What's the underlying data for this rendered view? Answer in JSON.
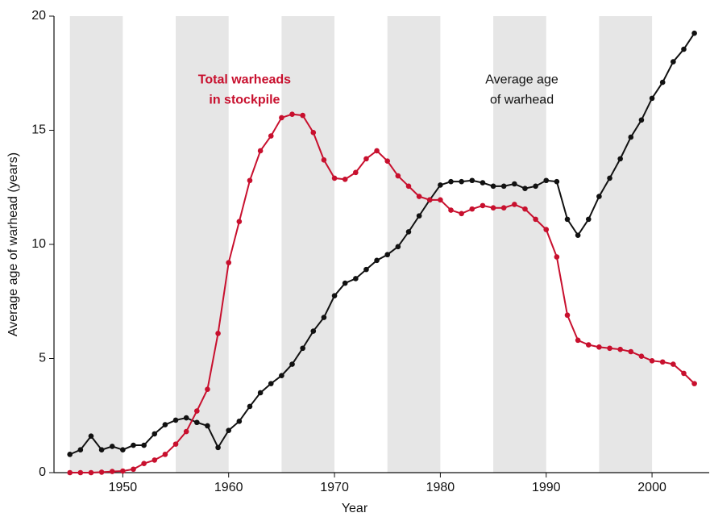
{
  "chart_data": {
    "type": "line",
    "xlabel": "Year",
    "ylabel": "Average age of warhead (years)",
    "x": [
      1945,
      1946,
      1947,
      1948,
      1949,
      1950,
      1951,
      1952,
      1953,
      1954,
      1955,
      1956,
      1957,
      1958,
      1959,
      1960,
      1961,
      1962,
      1963,
      1964,
      1965,
      1966,
      1967,
      1968,
      1969,
      1970,
      1971,
      1972,
      1973,
      1974,
      1975,
      1976,
      1977,
      1978,
      1979,
      1980,
      1981,
      1982,
      1983,
      1984,
      1985,
      1986,
      1987,
      1988,
      1989,
      1990,
      1991,
      1992,
      1993,
      1994,
      1995,
      1996,
      1997,
      1998,
      1999,
      2000,
      2001,
      2002,
      2003,
      2004
    ],
    "series": [
      {
        "name": "Average age of warhead",
        "color": "#111111",
        "values": [
          0.8,
          1.0,
          1.6,
          1.0,
          1.15,
          1.0,
          1.2,
          1.2,
          1.7,
          2.1,
          2.3,
          2.4,
          2.2,
          2.05,
          1.1,
          1.85,
          2.25,
          2.9,
          3.5,
          3.9,
          4.25,
          4.75,
          5.45,
          6.2,
          6.8,
          7.75,
          8.3,
          8.5,
          8.9,
          9.3,
          9.55,
          9.9,
          10.55,
          11.25,
          11.95,
          12.6,
          12.75,
          12.75,
          12.8,
          12.7,
          12.55,
          12.55,
          12.65,
          12.45,
          12.55,
          12.8,
          12.75,
          11.1,
          10.4,
          11.1,
          12.1,
          12.9,
          13.75,
          14.7,
          15.45,
          16.4,
          17.1,
          18.0,
          18.55,
          19.25
        ]
      },
      {
        "name": "Total warheads in stockpile",
        "color": "#c8102e",
        "values": [
          0,
          0,
          0,
          0.02,
          0.05,
          0.07,
          0.15,
          0.4,
          0.55,
          0.8,
          1.25,
          1.8,
          2.7,
          3.65,
          6.1,
          9.2,
          11.0,
          12.8,
          14.1,
          14.75,
          15.55,
          15.7,
          15.65,
          14.9,
          13.7,
          12.9,
          12.85,
          13.15,
          13.75,
          14.1,
          13.65,
          13.0,
          12.55,
          12.1,
          11.95,
          11.95,
          11.5,
          11.35,
          11.55,
          11.7,
          11.6,
          11.6,
          11.75,
          11.55,
          11.1,
          10.65,
          9.45,
          6.9,
          5.8,
          5.6,
          5.5,
          5.45,
          5.4,
          5.3,
          5.1,
          4.9,
          4.85,
          4.75,
          4.35,
          3.9
        ]
      }
    ],
    "annotations": [
      {
        "lines": [
          "Total warheads",
          "in stockpile"
        ],
        "color": "#c8102e",
        "bold": true,
        "x": 1961.5,
        "y": 17.2
      },
      {
        "lines": [
          "Average age",
          "of warhead"
        ],
        "color": "#111111",
        "bold": false,
        "x": 1987.7,
        "y": 17.2
      }
    ],
    "shaded_bands": [
      [
        1945,
        1950
      ],
      [
        1955,
        1960
      ],
      [
        1965,
        1970
      ],
      [
        1975,
        1980
      ],
      [
        1985,
        1990
      ],
      [
        1995,
        2000
      ]
    ],
    "band_color": "#e6e6e6",
    "xlim": [
      1943.5,
      2005.4
    ],
    "ylim": [
      0,
      20
    ],
    "xticks": [
      1950,
      1960,
      1970,
      1980,
      1990,
      2000
    ],
    "yticks": [
      0,
      5,
      10,
      15,
      20
    ]
  }
}
